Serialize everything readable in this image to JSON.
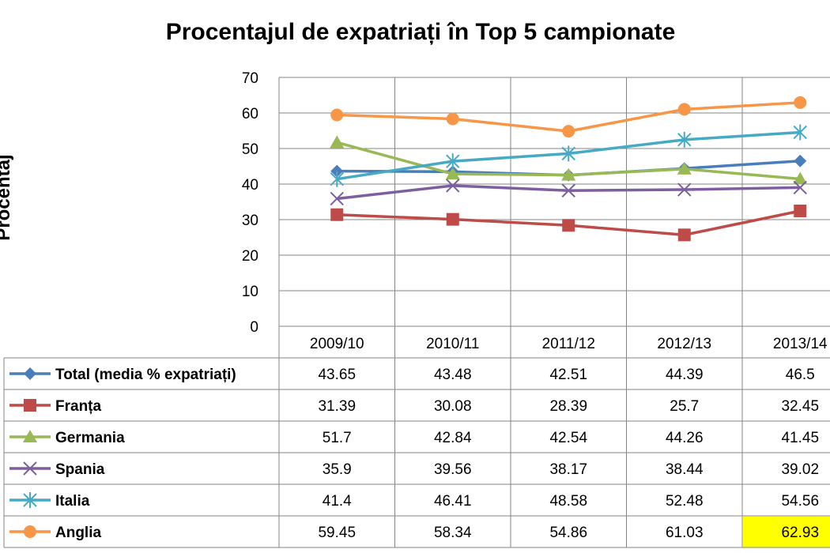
{
  "chart_data": {
    "type": "line",
    "title": "Procentajul de expatriați în Top 5 campionate",
    "ylabel": "Procentaj",
    "xlabel": "",
    "ylim": [
      0,
      70
    ],
    "yticks": [
      0,
      10,
      20,
      30,
      40,
      50,
      60,
      70
    ],
    "grid": true,
    "legend": "table-below",
    "categories": [
      "2009/10",
      "2010/11",
      "2011/12",
      "2012/13",
      "2013/14"
    ],
    "series": [
      {
        "name": "Total (media % expatriați)",
        "color": "#4A7EBB",
        "marker": "diamond",
        "values": [
          43.65,
          43.48,
          42.51,
          44.39,
          46.5
        ],
        "labels": [
          "43.65",
          "43.48",
          "42.51",
          "44.39",
          "46.5"
        ]
      },
      {
        "name": "Franța",
        "color": "#BE4B48",
        "marker": "square",
        "values": [
          31.39,
          30.08,
          28.39,
          25.7,
          32.45
        ],
        "labels": [
          "31.39",
          "30.08",
          "28.39",
          "25.7",
          "32.45"
        ]
      },
      {
        "name": "Germania",
        "color": "#98B954",
        "marker": "triangle",
        "values": [
          51.7,
          42.84,
          42.54,
          44.26,
          41.45
        ],
        "labels": [
          "51.7",
          "42.84",
          "42.54",
          "44.26",
          "41.45"
        ]
      },
      {
        "name": "Spania",
        "color": "#7D5FA0",
        "marker": "x",
        "values": [
          35.9,
          39.56,
          38.17,
          38.44,
          39.02
        ],
        "labels": [
          "35.9",
          "39.56",
          "38.17",
          "38.44",
          "39.02"
        ]
      },
      {
        "name": "Italia",
        "color": "#46AAC5",
        "marker": "star",
        "values": [
          41.4,
          46.41,
          48.58,
          52.48,
          54.56
        ],
        "labels": [
          "41.4",
          "46.41",
          "48.58",
          "52.48",
          "54.56"
        ]
      },
      {
        "name": "Anglia",
        "color": "#F79646",
        "marker": "circle",
        "values": [
          59.45,
          58.34,
          54.86,
          61.03,
          62.93
        ],
        "labels": [
          "59.45",
          "58.34",
          "54.86",
          "61.03",
          "62.93"
        ]
      }
    ],
    "highlight": {
      "series": 5,
      "index": 4,
      "color": "#FFFF00"
    }
  }
}
